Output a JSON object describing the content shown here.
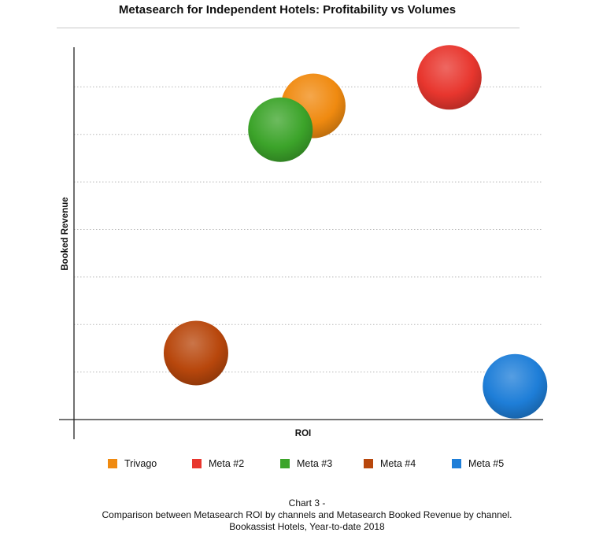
{
  "chart_data": {
    "type": "scatter",
    "variant": "bubble",
    "title": "Metasearch for Independent Hotels: Profitability vs Volumes",
    "xlabel": "ROI",
    "ylabel": "Booked Revenue",
    "xlim": [
      0,
      100
    ],
    "ylim": [
      0,
      8
    ],
    "x_ticks_labeled": false,
    "y_ticks_labeled": false,
    "grid": "horizontal dotted",
    "legend_position": "bottom",
    "series": [
      {
        "name": "Trivago",
        "color": "#f08a10",
        "x": 51,
        "y": 6.6,
        "size": 1
      },
      {
        "name": "Meta #2",
        "color": "#e8362e",
        "x": 80,
        "y": 7.2,
        "size": 1
      },
      {
        "name": "Meta #3",
        "color": "#3ca42a",
        "x": 44,
        "y": 6.1,
        "size": 1
      },
      {
        "name": "Meta #4",
        "color": "#b8470c",
        "x": 26,
        "y": 1.4,
        "size": 1
      },
      {
        "name": "Meta #5",
        "color": "#1e7ed8",
        "x": 94,
        "y": 0.7,
        "size": 1
      }
    ]
  },
  "caption": {
    "line1": "Chart 3 -",
    "line2": "Comparison between Metasearch ROI by channels and Metasearch Booked Revenue by channel.",
    "line3": "Bookassist Hotels, Year-to-date 2018"
  }
}
